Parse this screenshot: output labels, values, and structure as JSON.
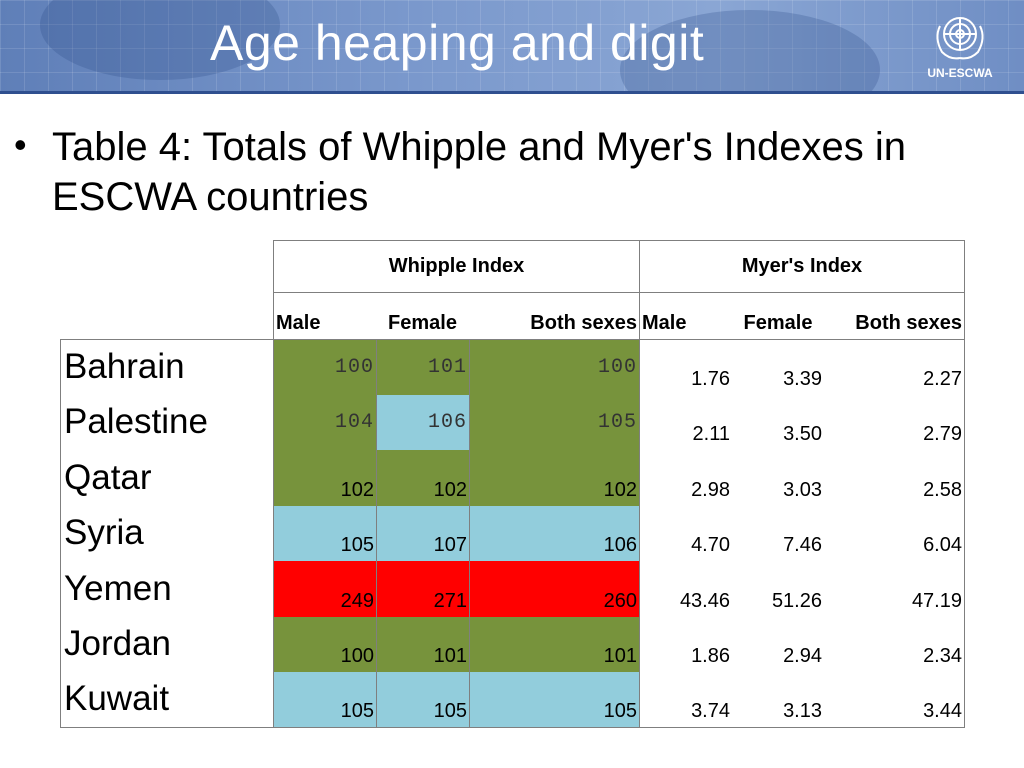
{
  "header": {
    "title": "Age heaping and digit",
    "logo_text": "UN-ESCWA",
    "logo_icon": "un-emblem-icon"
  },
  "bullet": {
    "text": "Table 4: Totals of Whipple and Myer's Indexes in ESCWA countries"
  },
  "table": {
    "group_headers": [
      "Whipple Index",
      "Myer's Index"
    ],
    "sub_headers": [
      "Male",
      "Female",
      "Both sexes",
      "Male",
      "Female",
      "Both sexes"
    ],
    "rows": [
      {
        "country": "Bahrain",
        "whipple": [
          "100",
          "101",
          "100"
        ],
        "myers": [
          "1.76",
          "3.39",
          "2.27"
        ]
      },
      {
        "country": "Palestine",
        "whipple": [
          "104",
          "106",
          "105"
        ],
        "myers": [
          "2.11",
          "3.50",
          "2.79"
        ]
      },
      {
        "country": "Qatar",
        "whipple": [
          "102",
          "102",
          "102"
        ],
        "myers": [
          "2.98",
          "3.03",
          "2.58"
        ]
      },
      {
        "country": "Syria",
        "whipple": [
          "105",
          "107",
          "106"
        ],
        "myers": [
          "4.70",
          "7.46",
          "6.04"
        ]
      },
      {
        "country": "Yemen",
        "whipple": [
          "249",
          "271",
          "260"
        ],
        "myers": [
          "43.46",
          "51.26",
          "47.19"
        ]
      },
      {
        "country": "Jordan",
        "whipple": [
          "100",
          "101",
          "101"
        ],
        "myers": [
          "1.86",
          "2.94",
          "2.34"
        ]
      },
      {
        "country": "Kuwait",
        "whipple": [
          "105",
          "105",
          "105"
        ],
        "myers": [
          "3.74",
          "3.13",
          "3.44"
        ]
      }
    ],
    "colors": {
      "green": "#77933c",
      "blue": "#92cddc",
      "red": "#ff0000"
    },
    "whipple_cell_colors": [
      [
        "green",
        "green",
        "green"
      ],
      [
        "green",
        "blue",
        "green"
      ],
      [
        "green",
        "green",
        "green"
      ],
      [
        "blue",
        "blue",
        "blue"
      ],
      [
        "red",
        "red",
        "red"
      ],
      [
        "green",
        "green",
        "green"
      ],
      [
        "blue",
        "blue",
        "blue"
      ]
    ],
    "monospace_rows": [
      0,
      1
    ]
  }
}
